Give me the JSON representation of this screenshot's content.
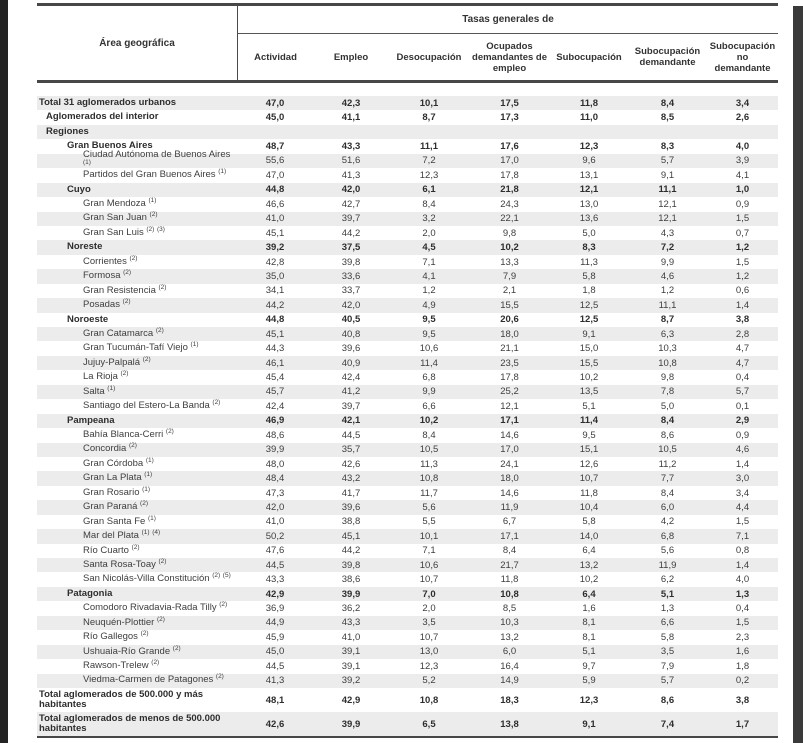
{
  "colors": {
    "zebra_row": "#ececec",
    "rule": "#474747",
    "text": "#3e3e3e",
    "bold_text": "#2e2e2e",
    "viewer_edge": "#232323"
  },
  "table": {
    "area_header": "Área geográfica",
    "group_header": "Tasas generales de",
    "columns": [
      "Actividad",
      "Empleo",
      "Desocupación",
      "Ocupados demandantes de empleo",
      "Subocupación",
      "Subocupación demandante",
      "Subocupación no demandante"
    ],
    "rows": [
      {
        "label": "Total 31 aglomerados urbanos",
        "level": 0,
        "bold": true,
        "sup": [],
        "values": [
          "47,0",
          "42,3",
          "10,1",
          "17,5",
          "11,8",
          "8,4",
          "3,4"
        ]
      },
      {
        "label": "Aglomerados del interior",
        "level": 1,
        "bold": true,
        "sup": [],
        "values": [
          "45,0",
          "41,1",
          "8,7",
          "17,3",
          "11,0",
          "8,5",
          "2,6"
        ]
      },
      {
        "label": "Regiones",
        "level": 1,
        "bold": true,
        "sup": [],
        "values": [
          "",
          "",
          "",
          "",
          "",
          "",
          ""
        ]
      },
      {
        "label": "Gran Buenos Aires",
        "level": 2,
        "bold": true,
        "sup": [],
        "values": [
          "48,7",
          "43,3",
          "11,1",
          "17,6",
          "12,3",
          "8,3",
          "4,0"
        ]
      },
      {
        "label": "Ciudad Autónoma de Buenos Aires",
        "level": 3,
        "bold": false,
        "sup": [
          "1"
        ],
        "values": [
          "55,6",
          "51,6",
          "7,2",
          "17,0",
          "9,6",
          "5,7",
          "3,9"
        ]
      },
      {
        "label": "Partidos del Gran Buenos Aires",
        "level": 3,
        "bold": false,
        "sup": [
          "1"
        ],
        "values": [
          "47,0",
          "41,3",
          "12,3",
          "17,8",
          "13,1",
          "9,1",
          "4,1"
        ]
      },
      {
        "label": "Cuyo",
        "level": 2,
        "bold": true,
        "sup": [],
        "values": [
          "44,8",
          "42,0",
          "6,1",
          "21,8",
          "12,1",
          "11,1",
          "1,0"
        ]
      },
      {
        "label": "Gran Mendoza",
        "level": 3,
        "bold": false,
        "sup": [
          "1"
        ],
        "values": [
          "46,6",
          "42,7",
          "8,4",
          "24,3",
          "13,0",
          "12,1",
          "0,9"
        ]
      },
      {
        "label": "Gran San Juan",
        "level": 3,
        "bold": false,
        "sup": [
          "2"
        ],
        "values": [
          "41,0",
          "39,7",
          "3,2",
          "22,1",
          "13,6",
          "12,1",
          "1,5"
        ]
      },
      {
        "label": "Gran San Luis",
        "level": 3,
        "bold": false,
        "sup": [
          "2",
          "3"
        ],
        "values": [
          "45,1",
          "44,2",
          "2,0",
          "9,8",
          "5,0",
          "4,3",
          "0,7"
        ]
      },
      {
        "label": "Noreste",
        "level": 2,
        "bold": true,
        "sup": [],
        "values": [
          "39,2",
          "37,5",
          "4,5",
          "10,2",
          "8,3",
          "7,2",
          "1,2"
        ]
      },
      {
        "label": "Corrientes",
        "level": 3,
        "bold": false,
        "sup": [
          "2"
        ],
        "values": [
          "42,8",
          "39,8",
          "7,1",
          "13,3",
          "11,3",
          "9,9",
          "1,5"
        ]
      },
      {
        "label": "Formosa",
        "level": 3,
        "bold": false,
        "sup": [
          "2"
        ],
        "values": [
          "35,0",
          "33,6",
          "4,1",
          "7,9",
          "5,8",
          "4,6",
          "1,2"
        ]
      },
      {
        "label": "Gran Resistencia",
        "level": 3,
        "bold": false,
        "sup": [
          "2"
        ],
        "values": [
          "34,1",
          "33,7",
          "1,2",
          "2,1",
          "1,8",
          "1,2",
          "0,6"
        ]
      },
      {
        "label": "Posadas",
        "level": 3,
        "bold": false,
        "sup": [
          "2"
        ],
        "values": [
          "44,2",
          "42,0",
          "4,9",
          "15,5",
          "12,5",
          "11,1",
          "1,4"
        ]
      },
      {
        "label": "Noroeste",
        "level": 2,
        "bold": true,
        "sup": [],
        "values": [
          "44,8",
          "40,5",
          "9,5",
          "20,6",
          "12,5",
          "8,7",
          "3,8"
        ]
      },
      {
        "label": "Gran Catamarca",
        "level": 3,
        "bold": false,
        "sup": [
          "2"
        ],
        "values": [
          "45,1",
          "40,8",
          "9,5",
          "18,0",
          "9,1",
          "6,3",
          "2,8"
        ]
      },
      {
        "label": "Gran Tucumán-Tafí Viejo",
        "level": 3,
        "bold": false,
        "sup": [
          "1"
        ],
        "values": [
          "44,3",
          "39,6",
          "10,6",
          "21,1",
          "15,0",
          "10,3",
          "4,7"
        ]
      },
      {
        "label": "Jujuy-Palpalá",
        "level": 3,
        "bold": false,
        "sup": [
          "2"
        ],
        "values": [
          "46,1",
          "40,9",
          "11,4",
          "23,5",
          "15,5",
          "10,8",
          "4,7"
        ]
      },
      {
        "label": "La Rioja",
        "level": 3,
        "bold": false,
        "sup": [
          "2"
        ],
        "values": [
          "45,4",
          "42,4",
          "6,8",
          "17,8",
          "10,2",
          "9,8",
          "0,4"
        ]
      },
      {
        "label": "Salta",
        "level": 3,
        "bold": false,
        "sup": [
          "1"
        ],
        "values": [
          "45,7",
          "41,2",
          "9,9",
          "25,2",
          "13,5",
          "7,8",
          "5,7"
        ]
      },
      {
        "label": "Santiago del Estero-La Banda",
        "level": 3,
        "bold": false,
        "sup": [
          "2"
        ],
        "values": [
          "42,4",
          "39,7",
          "6,6",
          "12,1",
          "5,1",
          "5,0",
          "0,1"
        ]
      },
      {
        "label": "Pampeana",
        "level": 2,
        "bold": true,
        "sup": [],
        "values": [
          "46,9",
          "42,1",
          "10,2",
          "17,1",
          "11,4",
          "8,4",
          "2,9"
        ]
      },
      {
        "label": "Bahía Blanca-Cerri",
        "level": 3,
        "bold": false,
        "sup": [
          "2"
        ],
        "values": [
          "48,6",
          "44,5",
          "8,4",
          "14,6",
          "9,5",
          "8,6",
          "0,9"
        ]
      },
      {
        "label": "Concordia",
        "level": 3,
        "bold": false,
        "sup": [
          "2"
        ],
        "values": [
          "39,9",
          "35,7",
          "10,5",
          "17,0",
          "15,1",
          "10,5",
          "4,6"
        ]
      },
      {
        "label": "Gran Córdoba",
        "level": 3,
        "bold": false,
        "sup": [
          "1"
        ],
        "values": [
          "48,0",
          "42,6",
          "11,3",
          "24,1",
          "12,6",
          "11,2",
          "1,4"
        ]
      },
      {
        "label": "Gran La Plata",
        "level": 3,
        "bold": false,
        "sup": [
          "1"
        ],
        "values": [
          "48,4",
          "43,2",
          "10,8",
          "18,0",
          "10,7",
          "7,7",
          "3,0"
        ]
      },
      {
        "label": "Gran Rosario",
        "level": 3,
        "bold": false,
        "sup": [
          "1"
        ],
        "values": [
          "47,3",
          "41,7",
          "11,7",
          "14,6",
          "11,8",
          "8,4",
          "3,4"
        ]
      },
      {
        "label": "Gran Paraná",
        "level": 3,
        "bold": false,
        "sup": [
          "2"
        ],
        "values": [
          "42,0",
          "39,6",
          "5,6",
          "11,9",
          "10,4",
          "6,0",
          "4,4"
        ]
      },
      {
        "label": "Gran Santa Fe",
        "level": 3,
        "bold": false,
        "sup": [
          "1"
        ],
        "values": [
          "41,0",
          "38,8",
          "5,5",
          "6,7",
          "5,8",
          "4,2",
          "1,5"
        ]
      },
      {
        "label": "Mar del Plata",
        "level": 3,
        "bold": false,
        "sup": [
          "1",
          "4"
        ],
        "values": [
          "50,2",
          "45,1",
          "10,1",
          "17,1",
          "14,0",
          "6,8",
          "7,1"
        ]
      },
      {
        "label": "Río Cuarto",
        "level": 3,
        "bold": false,
        "sup": [
          "2"
        ],
        "values": [
          "47,6",
          "44,2",
          "7,1",
          "8,4",
          "6,4",
          "5,6",
          "0,8"
        ]
      },
      {
        "label": "Santa Rosa-Toay",
        "level": 3,
        "bold": false,
        "sup": [
          "2"
        ],
        "values": [
          "44,5",
          "39,8",
          "10,6",
          "21,7",
          "13,2",
          "11,9",
          "1,4"
        ]
      },
      {
        "label": "San Nicolás-Villa Constitución",
        "level": 3,
        "bold": false,
        "sup": [
          "2",
          "5"
        ],
        "values": [
          "43,3",
          "38,6",
          "10,7",
          "11,8",
          "10,2",
          "6,2",
          "4,0"
        ]
      },
      {
        "label": "Patagonia",
        "level": 2,
        "bold": true,
        "sup": [],
        "values": [
          "42,9",
          "39,9",
          "7,0",
          "10,8",
          "6,4",
          "5,1",
          "1,3"
        ]
      },
      {
        "label": "Comodoro Rivadavia-Rada Tilly",
        "level": 3,
        "bold": false,
        "sup": [
          "2"
        ],
        "values": [
          "36,9",
          "36,2",
          "2,0",
          "8,5",
          "1,6",
          "1,3",
          "0,4"
        ]
      },
      {
        "label": "Neuquén-Plottier",
        "level": 3,
        "bold": false,
        "sup": [
          "2"
        ],
        "values": [
          "44,9",
          "43,3",
          "3,5",
          "10,3",
          "8,1",
          "6,6",
          "1,5"
        ]
      },
      {
        "label": "Río Gallegos",
        "level": 3,
        "bold": false,
        "sup": [
          "2"
        ],
        "values": [
          "45,9",
          "41,0",
          "10,7",
          "13,2",
          "8,1",
          "5,8",
          "2,3"
        ]
      },
      {
        "label": "Ushuaia-Río Grande",
        "level": 3,
        "bold": false,
        "sup": [
          "2"
        ],
        "values": [
          "45,0",
          "39,1",
          "13,0",
          "6,0",
          "5,1",
          "3,5",
          "1,6"
        ]
      },
      {
        "label": "Rawson-Trelew",
        "level": 3,
        "bold": false,
        "sup": [
          "2"
        ],
        "values": [
          "44,5",
          "39,1",
          "12,3",
          "16,4",
          "9,7",
          "7,9",
          "1,8"
        ]
      },
      {
        "label": "Viedma-Carmen de Patagones",
        "level": 3,
        "bold": false,
        "sup": [
          "2"
        ],
        "values": [
          "41,3",
          "39,2",
          "5,2",
          "14,9",
          "5,9",
          "5,7",
          "0,2"
        ]
      },
      {
        "label": "Total aglomerados de 500.000 y más habitantes",
        "level": 0,
        "bold": true,
        "tall": true,
        "sup": [],
        "values": [
          "48,1",
          "42,9",
          "10,8",
          "18,3",
          "12,3",
          "8,6",
          "3,8"
        ]
      },
      {
        "label": "Total aglomerados de menos de 500.000 habitantes",
        "level": 0,
        "bold": true,
        "tall": true,
        "sup": [],
        "values": [
          "42,6",
          "39,9",
          "6,5",
          "13,8",
          "9,1",
          "7,4",
          "1,7"
        ]
      }
    ]
  }
}
